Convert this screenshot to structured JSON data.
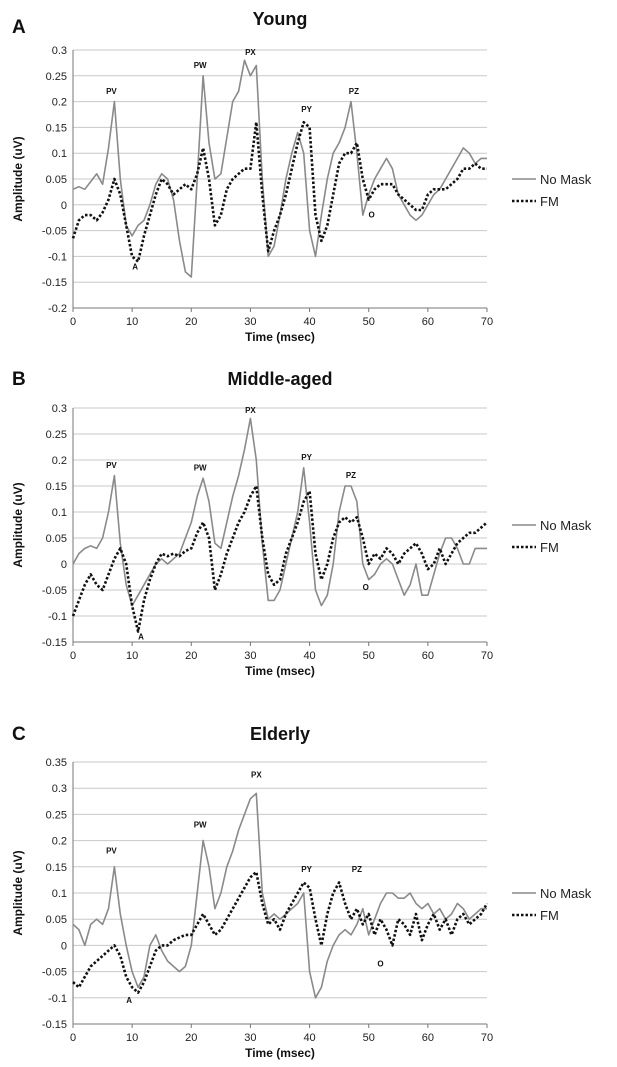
{
  "colors": {
    "no_mask": "#8a8a8a",
    "fm": "#111111",
    "grid": "#c8c8c8"
  },
  "chart_data": [
    {
      "type": "line",
      "panel": "A",
      "title": "Young",
      "xlabel": "Time (msec)",
      "ylabel": "Amplitude (uV)",
      "xlim": [
        0,
        70
      ],
      "ylim": [
        -0.2,
        0.3
      ],
      "xticks": [
        0,
        10,
        20,
        30,
        40,
        50,
        60,
        70
      ],
      "yticks": [
        -0.2,
        -0.15,
        -0.1,
        -0.05,
        0,
        0.05,
        0.1,
        0.15,
        0.2,
        0.25,
        0.3
      ],
      "grid": true,
      "legend_position": "right",
      "series": [
        {
          "name": "No Mask",
          "style": "solid",
          "x": [
            0,
            1,
            2,
            3,
            4,
            5,
            6,
            7,
            8,
            9,
            10,
            11,
            12,
            13,
            14,
            15,
            16,
            17,
            18,
            19,
            20,
            21,
            22,
            23,
            24,
            25,
            26,
            27,
            28,
            29,
            30,
            31,
            32,
            33,
            34,
            35,
            36,
            37,
            38,
            39,
            40,
            41,
            42,
            43,
            44,
            45,
            46,
            47,
            48,
            49,
            50,
            51,
            52,
            53,
            54,
            55,
            56,
            57,
            58,
            59,
            60,
            61,
            62,
            63,
            64,
            65,
            66,
            67,
            68,
            69,
            70
          ],
          "y": [
            0.03,
            0.035,
            0.03,
            0.045,
            0.06,
            0.04,
            0.11,
            0.2,
            0.05,
            -0.04,
            -0.06,
            -0.04,
            -0.03,
            0.0,
            0.04,
            0.06,
            0.05,
            0.01,
            -0.07,
            -0.13,
            -0.14,
            0.05,
            0.25,
            0.12,
            0.05,
            0.06,
            0.13,
            0.2,
            0.22,
            0.28,
            0.25,
            0.27,
            0.05,
            -0.1,
            -0.08,
            -0.02,
            0.05,
            0.1,
            0.14,
            0.1,
            -0.05,
            -0.1,
            -0.02,
            0.05,
            0.1,
            0.12,
            0.15,
            0.2,
            0.1,
            -0.02,
            0.02,
            0.05,
            0.07,
            0.09,
            0.07,
            0.02,
            0.0,
            -0.02,
            -0.03,
            -0.02,
            0.0,
            0.02,
            0.03,
            0.05,
            0.07,
            0.09,
            0.11,
            0.1,
            0.08,
            0.09,
            0.09
          ]
        },
        {
          "name": "FM",
          "style": "dotted",
          "x": [
            0,
            1,
            2,
            3,
            4,
            5,
            6,
            7,
            8,
            9,
            10,
            11,
            12,
            13,
            14,
            15,
            16,
            17,
            18,
            19,
            20,
            21,
            22,
            23,
            24,
            25,
            26,
            27,
            28,
            29,
            30,
            31,
            32,
            33,
            34,
            35,
            36,
            37,
            38,
            39,
            40,
            41,
            42,
            43,
            44,
            45,
            46,
            47,
            48,
            49,
            50,
            51,
            52,
            53,
            54,
            55,
            56,
            57,
            58,
            59,
            60,
            61,
            62,
            63,
            64,
            65,
            66,
            67,
            68,
            69,
            70
          ],
          "y": [
            -0.065,
            -0.03,
            -0.02,
            -0.02,
            -0.03,
            -0.015,
            0.01,
            0.05,
            0.02,
            -0.04,
            -0.1,
            -0.11,
            -0.06,
            -0.02,
            0.02,
            0.05,
            0.04,
            0.02,
            0.03,
            0.04,
            0.03,
            0.06,
            0.11,
            0.05,
            -0.04,
            -0.02,
            0.03,
            0.05,
            0.06,
            0.07,
            0.07,
            0.16,
            0.02,
            -0.09,
            -0.05,
            -0.02,
            0.02,
            0.07,
            0.12,
            0.16,
            0.15,
            -0.02,
            -0.07,
            -0.04,
            0.02,
            0.08,
            0.1,
            0.1,
            0.12,
            0.05,
            0.01,
            0.03,
            0.04,
            0.04,
            0.04,
            0.02,
            0.01,
            0.0,
            -0.01,
            -0.01,
            0.02,
            0.03,
            0.03,
            0.03,
            0.04,
            0.05,
            0.07,
            0.07,
            0.08,
            0.07,
            0.07
          ]
        }
      ],
      "annotations": [
        {
          "text": "PV",
          "x": 6.5,
          "y": 0.215
        },
        {
          "text": "PW",
          "x": 21.5,
          "y": 0.265
        },
        {
          "text": "PX",
          "x": 30,
          "y": 0.29
        },
        {
          "text": "PY",
          "x": 39.5,
          "y": 0.18
        },
        {
          "text": "PZ",
          "x": 47.5,
          "y": 0.215
        },
        {
          "text": "A",
          "x": 10.5,
          "y": -0.125
        },
        {
          "text": "O",
          "x": 50.5,
          "y": -0.025
        }
      ]
    },
    {
      "type": "line",
      "panel": "B",
      "title": "Middle-aged",
      "xlabel": "Time (msec)",
      "ylabel": "Amplitude (uV)",
      "xlim": [
        0,
        70
      ],
      "ylim": [
        -0.15,
        0.3
      ],
      "xticks": [
        0,
        10,
        20,
        30,
        40,
        50,
        60,
        70
      ],
      "yticks": [
        -0.15,
        -0.1,
        -0.05,
        0,
        0.05,
        0.1,
        0.15,
        0.2,
        0.25,
        0.3
      ],
      "grid": true,
      "legend_position": "right",
      "series": [
        {
          "name": "No Mask",
          "style": "solid",
          "x": [
            0,
            1,
            2,
            3,
            4,
            5,
            6,
            7,
            8,
            9,
            10,
            11,
            12,
            13,
            14,
            15,
            16,
            17,
            18,
            19,
            20,
            21,
            22,
            23,
            24,
            25,
            26,
            27,
            28,
            29,
            30,
            31,
            32,
            33,
            34,
            35,
            36,
            37,
            38,
            39,
            40,
            41,
            42,
            43,
            44,
            45,
            46,
            47,
            48,
            49,
            50,
            51,
            52,
            53,
            54,
            55,
            56,
            57,
            58,
            59,
            60,
            61,
            62,
            63,
            64,
            65,
            66,
            67,
            68,
            69,
            70
          ],
          "y": [
            0.0,
            0.02,
            0.03,
            0.035,
            0.03,
            0.05,
            0.1,
            0.17,
            0.04,
            -0.04,
            -0.08,
            -0.06,
            -0.04,
            -0.02,
            0.0,
            0.01,
            0.0,
            0.01,
            0.02,
            0.05,
            0.08,
            0.13,
            0.165,
            0.12,
            0.04,
            0.03,
            0.08,
            0.13,
            0.17,
            0.22,
            0.28,
            0.2,
            0.04,
            -0.07,
            -0.07,
            -0.05,
            0.0,
            0.05,
            0.1,
            0.185,
            0.08,
            -0.05,
            -0.08,
            -0.06,
            0.0,
            0.1,
            0.15,
            0.15,
            0.12,
            0.0,
            -0.03,
            -0.02,
            0.0,
            0.01,
            0.0,
            -0.03,
            -0.06,
            -0.04,
            0.0,
            -0.06,
            -0.06,
            -0.02,
            0.02,
            0.05,
            0.05,
            0.03,
            0.0,
            0.0,
            0.03,
            0.03,
            0.03
          ]
        },
        {
          "name": "FM",
          "style": "dotted",
          "x": [
            0,
            1,
            2,
            3,
            4,
            5,
            6,
            7,
            8,
            9,
            10,
            11,
            12,
            13,
            14,
            15,
            16,
            17,
            18,
            19,
            20,
            21,
            22,
            23,
            24,
            25,
            26,
            27,
            28,
            29,
            30,
            31,
            32,
            33,
            34,
            35,
            36,
            37,
            38,
            39,
            40,
            41,
            42,
            43,
            44,
            45,
            46,
            47,
            48,
            49,
            50,
            51,
            52,
            53,
            54,
            55,
            56,
            57,
            58,
            59,
            60,
            61,
            62,
            63,
            64,
            65,
            66,
            67,
            68,
            69,
            70
          ],
          "y": [
            -0.1,
            -0.07,
            -0.04,
            -0.02,
            -0.04,
            -0.05,
            -0.02,
            0.01,
            0.03,
            0.0,
            -0.08,
            -0.13,
            -0.07,
            -0.03,
            0.0,
            0.02,
            0.015,
            0.02,
            0.015,
            0.025,
            0.03,
            0.06,
            0.08,
            0.05,
            -0.05,
            -0.02,
            0.02,
            0.05,
            0.08,
            0.1,
            0.13,
            0.15,
            0.05,
            -0.02,
            -0.04,
            -0.03,
            0.02,
            0.05,
            0.08,
            0.12,
            0.14,
            0.02,
            -0.03,
            0.0,
            0.05,
            0.08,
            0.09,
            0.08,
            0.09,
            0.05,
            0.0,
            0.02,
            0.01,
            0.03,
            0.02,
            0.0,
            0.02,
            0.03,
            0.04,
            0.02,
            -0.01,
            0.0,
            0.03,
            0.0,
            0.02,
            0.04,
            0.05,
            0.06,
            0.06,
            0.07,
            0.08
          ]
        }
      ],
      "annotations": [
        {
          "text": "PV",
          "x": 6.5,
          "y": 0.185
        },
        {
          "text": "PW",
          "x": 21.5,
          "y": 0.18
        },
        {
          "text": "PX",
          "x": 30,
          "y": 0.29
        },
        {
          "text": "PY",
          "x": 39.5,
          "y": 0.2
        },
        {
          "text": "PZ",
          "x": 47,
          "y": 0.165
        },
        {
          "text": "A",
          "x": 11.5,
          "y": -0.145
        },
        {
          "text": "O",
          "x": 49.5,
          "y": -0.05
        }
      ]
    },
    {
      "type": "line",
      "panel": "C",
      "title": "Elderly",
      "xlabel": "Time (msec)",
      "ylabel": "Amplitude (uV)",
      "xlim": [
        0,
        70
      ],
      "ylim": [
        -0.15,
        0.35
      ],
      "xticks": [
        0,
        10,
        20,
        30,
        40,
        50,
        60,
        70
      ],
      "yticks": [
        -0.15,
        -0.1,
        -0.05,
        0,
        0.05,
        0.1,
        0.15,
        0.2,
        0.25,
        0.3,
        0.35
      ],
      "grid": true,
      "legend_position": "right",
      "series": [
        {
          "name": "No Mask",
          "style": "solid",
          "x": [
            0,
            1,
            2,
            3,
            4,
            5,
            6,
            7,
            8,
            9,
            10,
            11,
            12,
            13,
            14,
            15,
            16,
            17,
            18,
            19,
            20,
            21,
            22,
            23,
            24,
            25,
            26,
            27,
            28,
            29,
            30,
            31,
            32,
            33,
            34,
            35,
            36,
            37,
            38,
            39,
            40,
            41,
            42,
            43,
            44,
            45,
            46,
            47,
            48,
            49,
            50,
            51,
            52,
            53,
            54,
            55,
            56,
            57,
            58,
            59,
            60,
            61,
            62,
            63,
            64,
            65,
            66,
            67,
            68,
            69,
            70
          ],
          "y": [
            0.04,
            0.03,
            0.0,
            0.04,
            0.05,
            0.04,
            0.07,
            0.15,
            0.06,
            0.0,
            -0.05,
            -0.08,
            -0.06,
            0.0,
            0.02,
            -0.01,
            -0.03,
            -0.04,
            -0.05,
            -0.04,
            0.0,
            0.1,
            0.2,
            0.15,
            0.07,
            0.1,
            0.15,
            0.18,
            0.22,
            0.25,
            0.28,
            0.29,
            0.1,
            0.05,
            0.06,
            0.05,
            0.06,
            0.07,
            0.08,
            0.1,
            -0.05,
            -0.1,
            -0.08,
            -0.03,
            0.0,
            0.02,
            0.03,
            0.02,
            0.04,
            0.07,
            0.02,
            0.05,
            0.08,
            0.1,
            0.1,
            0.09,
            0.09,
            0.1,
            0.08,
            0.07,
            0.08,
            0.06,
            0.07,
            0.05,
            0.06,
            0.08,
            0.07,
            0.05,
            0.06,
            0.07,
            0.07
          ]
        },
        {
          "name": "FM",
          "style": "dotted",
          "x": [
            0,
            1,
            2,
            3,
            4,
            5,
            6,
            7,
            8,
            9,
            10,
            11,
            12,
            13,
            14,
            15,
            16,
            17,
            18,
            19,
            20,
            21,
            22,
            23,
            24,
            25,
            26,
            27,
            28,
            29,
            30,
            31,
            32,
            33,
            34,
            35,
            36,
            37,
            38,
            39,
            40,
            41,
            42,
            43,
            44,
            45,
            46,
            47,
            48,
            49,
            50,
            51,
            52,
            53,
            54,
            55,
            56,
            57,
            58,
            59,
            60,
            61,
            62,
            63,
            64,
            65,
            66,
            67,
            68,
            69,
            70
          ],
          "y": [
            -0.07,
            -0.08,
            -0.06,
            -0.04,
            -0.03,
            -0.02,
            -0.01,
            0.0,
            -0.02,
            -0.06,
            -0.08,
            -0.09,
            -0.07,
            -0.04,
            -0.01,
            0.0,
            0.0,
            0.01,
            0.015,
            0.02,
            0.02,
            0.04,
            0.06,
            0.04,
            0.02,
            0.03,
            0.05,
            0.07,
            0.09,
            0.11,
            0.13,
            0.14,
            0.08,
            0.04,
            0.05,
            0.03,
            0.06,
            0.08,
            0.1,
            0.12,
            0.11,
            0.05,
            0.0,
            0.06,
            0.1,
            0.12,
            0.08,
            0.05,
            0.07,
            0.04,
            0.06,
            0.02,
            0.05,
            0.03,
            0.0,
            0.05,
            0.04,
            0.02,
            0.06,
            0.01,
            0.04,
            0.06,
            0.03,
            0.05,
            0.02,
            0.05,
            0.06,
            0.04,
            0.05,
            0.06,
            0.08
          ]
        }
      ],
      "annotations": [
        {
          "text": "PV",
          "x": 6.5,
          "y": 0.175
        },
        {
          "text": "PW",
          "x": 21.5,
          "y": 0.225
        },
        {
          "text": "PX",
          "x": 31,
          "y": 0.32
        },
        {
          "text": "PY",
          "x": 39.5,
          "y": 0.14
        },
        {
          "text": "PZ",
          "x": 48,
          "y": 0.14
        },
        {
          "text": "A",
          "x": 9.5,
          "y": -0.11
        },
        {
          "text": "O",
          "x": 52,
          "y": -0.04
        }
      ]
    }
  ]
}
